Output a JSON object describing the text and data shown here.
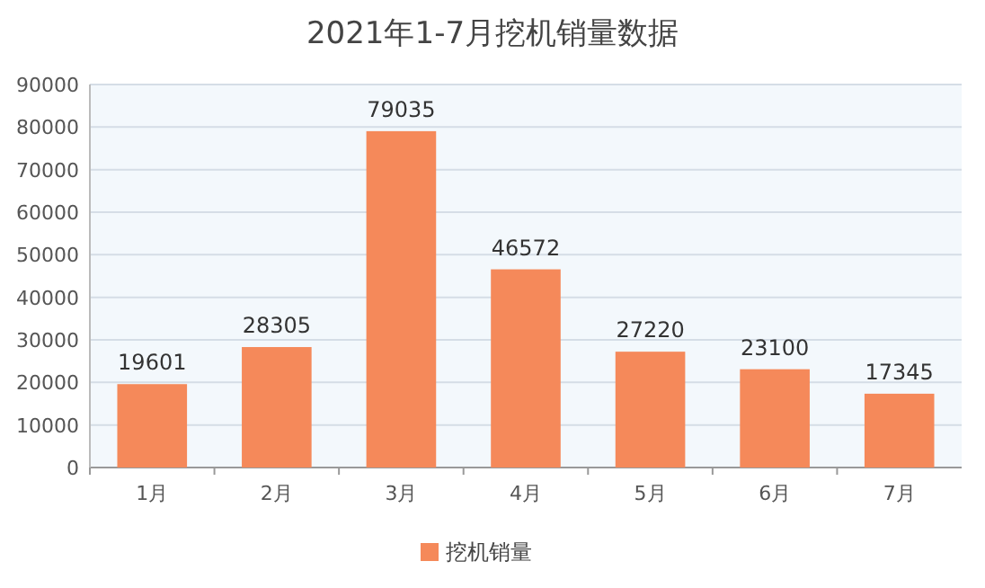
{
  "chart_data": {
    "type": "bar",
    "title": "2021年1-7月挖机销量数据",
    "categories": [
      "1月",
      "2月",
      "3月",
      "4月",
      "5月",
      "6月",
      "7月"
    ],
    "series": [
      {
        "name": "挖机销量",
        "color": "#f5895a",
        "values": [
          19601,
          28305,
          79035,
          46572,
          27220,
          23100,
          17345
        ]
      }
    ],
    "ylim": [
      0,
      90000
    ],
    "yticks": [
      0,
      10000,
      20000,
      30000,
      40000,
      50000,
      60000,
      70000,
      80000,
      90000
    ],
    "grid": "y",
    "legend": "bottom",
    "data_labels": true
  }
}
